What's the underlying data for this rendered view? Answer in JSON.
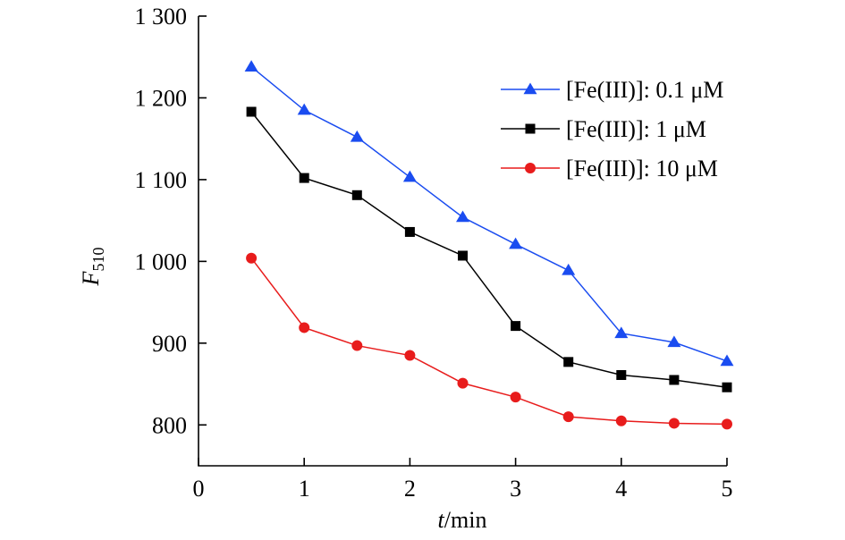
{
  "chart_data": {
    "type": "line",
    "title": "",
    "xlabel_var": "t",
    "xlabel_unit": "/min",
    "ylabel_var": "F",
    "ylabel_sub": "510",
    "xlim": [
      0,
      5
    ],
    "ylim": [
      750,
      1300
    ],
    "x_ticks": [
      0,
      1,
      2,
      3,
      4,
      5
    ],
    "x_tick_labels": [
      "0",
      "1",
      "2",
      "3",
      "4",
      "5"
    ],
    "y_ticks": [
      800,
      900,
      1000,
      1100,
      1200,
      1300
    ],
    "y_tick_labels": [
      "800",
      "900",
      "1 000",
      "1 100",
      "1 200",
      "1 300"
    ],
    "grid": false,
    "legend_position": "top-right",
    "x": [
      0.5,
      1.0,
      1.5,
      2.0,
      2.5,
      3.0,
      3.5,
      4.0,
      4.5,
      5.0
    ],
    "series": [
      {
        "name": "[Fe(III)]: 0.1 μM",
        "color": "#1a4cf0",
        "marker": "triangle",
        "values": [
          1238,
          1185,
          1152,
          1103,
          1054,
          1021,
          989,
          912,
          901,
          878
        ]
      },
      {
        "name": "[Fe(III)]: 1 μM",
        "color": "#000000",
        "marker": "square",
        "values": [
          1183,
          1102,
          1081,
          1036,
          1007,
          921,
          877,
          861,
          855,
          846
        ]
      },
      {
        "name": "[Fe(III)]: 10 μM",
        "color": "#e81c1c",
        "marker": "circle",
        "values": [
          1004,
          919,
          897,
          885,
          851,
          834,
          810,
          805,
          802,
          801
        ]
      }
    ]
  }
}
